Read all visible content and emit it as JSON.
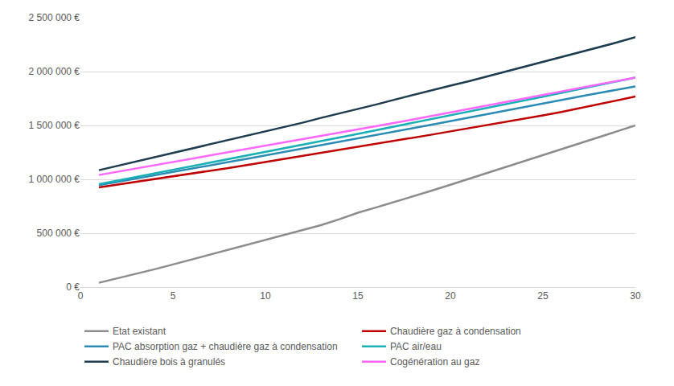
{
  "chart_data": {
    "type": "line",
    "x": [
      1,
      2,
      3,
      4,
      5,
      6,
      7,
      8,
      9,
      10,
      11,
      12,
      13,
      14,
      15,
      16,
      17,
      18,
      19,
      20,
      21,
      22,
      23,
      24,
      25,
      26,
      27,
      28,
      29,
      30
    ],
    "series": [
      {
        "name": "Etat existant",
        "color": "#8c8c8c",
        "values": [
          40000,
          80000,
          125000,
          165000,
          210000,
          255000,
          300000,
          345000,
          390000,
          435000,
          480000,
          525000,
          575000,
          630000,
          690000,
          740000,
          790000,
          840000,
          895000,
          950000,
          1005000,
          1060000,
          1115000,
          1165000,
          1220000,
          1275000,
          1330000,
          1390000,
          1445000,
          1500000
        ]
      },
      {
        "name": "Chaudière gaz à condensation",
        "color": "#c00000",
        "values": [
          925000,
          950000,
          975000,
          1000000,
          1025000,
          1050000,
          1078000,
          1105000,
          1132000,
          1160000,
          1187000,
          1215000,
          1243000,
          1271000,
          1300000,
          1328000,
          1357000,
          1386000,
          1415000,
          1445000,
          1474000,
          1504000,
          1534000,
          1564000,
          1594000,
          1625000,
          1660000,
          1695000,
          1730000,
          1768000
        ]
      },
      {
        "name": "PAC absorption gaz + chaudière gaz à condensation",
        "color": "#2a8bb5",
        "values": [
          945000,
          975000,
          1005000,
          1036000,
          1067000,
          1098000,
          1129000,
          1160000,
          1191000,
          1222000,
          1253000,
          1284000,
          1315000,
          1347000,
          1379000,
          1411000,
          1443000,
          1475000,
          1507000,
          1539000,
          1571000,
          1603000,
          1636000,
          1669000,
          1702000,
          1735000,
          1768000,
          1801000,
          1834000,
          1862000
        ]
      },
      {
        "name": "PAC air/eau",
        "color": "#1ab0b5",
        "values": [
          955000,
          988000,
          1020000,
          1053000,
          1086000,
          1119000,
          1152000,
          1185000,
          1218000,
          1252000,
          1286000,
          1320000,
          1354000,
          1388000,
          1422000,
          1456000,
          1490000,
          1524000,
          1558000,
          1592000,
          1627000,
          1662000,
          1697000,
          1732000,
          1767000,
          1802000,
          1837000,
          1872000,
          1907000,
          1945000
        ]
      },
      {
        "name": "Chaudière bois à granulés",
        "color": "#1d3c4f",
        "values": [
          1085000,
          1125000,
          1165000,
          1200000,
          1240000,
          1280000,
          1320000,
          1365000,
          1405000,
          1445000,
          1485000,
          1525000,
          1570000,
          1610000,
          1650000,
          1695000,
          1740000,
          1785000,
          1825000,
          1870000,
          1910000,
          1955000,
          2000000,
          2040000,
          2085000,
          2130000,
          2175000,
          2220000,
          2270000,
          2320000
        ]
      },
      {
        "name": "Cogénération au gaz",
        "color": "#ff66ff",
        "values": [
          1040000,
          1070000,
          1100000,
          1130000,
          1160000,
          1190000,
          1220000,
          1250000,
          1280000,
          1310000,
          1340000,
          1370000,
          1400000,
          1430000,
          1460000,
          1492000,
          1524000,
          1556000,
          1588000,
          1620000,
          1652000,
          1684000,
          1716000,
          1748000,
          1780000,
          1812000,
          1845000,
          1878000,
          1911000,
          1945000
        ]
      }
    ],
    "xlim": [
      0,
      30
    ],
    "xticks": [
      0,
      5,
      10,
      15,
      20,
      25,
      30
    ],
    "ylim": [
      0,
      2500000
    ],
    "yticks": [
      {
        "value": 0,
        "label": "0 €"
      },
      {
        "value": 500000,
        "label": "500 000 €"
      },
      {
        "value": 1000000,
        "label": "1 000 000 €"
      },
      {
        "value": 1500000,
        "label": "1 500 000 €"
      },
      {
        "value": 2000000,
        "label": "2 000 000 €"
      },
      {
        "value": 2500000,
        "label": "2 500 000 €"
      }
    ],
    "grid": true,
    "legend": "bottom"
  }
}
